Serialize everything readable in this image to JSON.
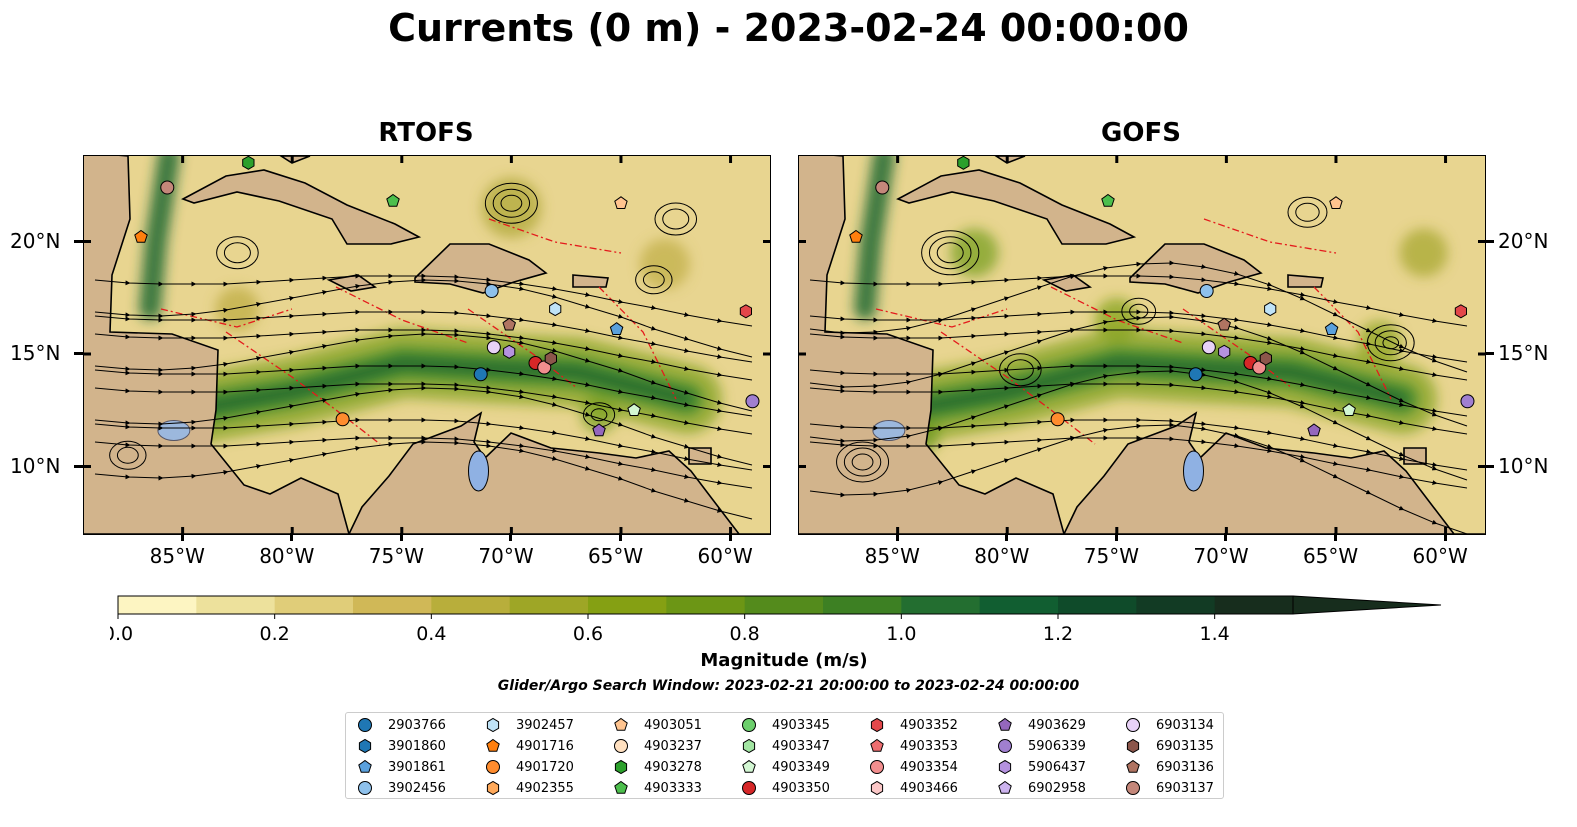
{
  "title": "Currents (0 m) - 2023-02-24 00:00:00",
  "panels": [
    {
      "id": "rtofs",
      "title": "RTOFS"
    },
    {
      "id": "gofs",
      "title": "GOFS"
    }
  ],
  "lon_ticks": [
    "85°W",
    "80°W",
    "75°W",
    "70°W",
    "65°W",
    "60°W"
  ],
  "lon_values": [
    -85,
    -80,
    -75,
    -70,
    -65,
    -60
  ],
  "lat_ticks": [
    "20°N",
    "15°N",
    "10°N"
  ],
  "lat_values": [
    20,
    15,
    10
  ],
  "extent": {
    "lon_min": -89.5,
    "lon_max": -58.2,
    "lat_min": 7.0,
    "lat_max": 23.8
  },
  "colorbar": {
    "label": "Magnitude (m/s)",
    "ticks": [
      "0.0",
      "0.2",
      "0.4",
      "0.6",
      "0.8",
      "1.0",
      "1.2",
      "1.4"
    ],
    "tick_values": [
      0.0,
      0.2,
      0.4,
      0.6,
      0.8,
      1.0,
      1.2,
      1.4
    ],
    "vmin": 0.0,
    "vmax": 1.5,
    "step": 0.1,
    "extend": "max",
    "colors": [
      "#fdf5c2",
      "#ede19c",
      "#e0cd79",
      "#d0b857",
      "#b8ae3b",
      "#9ea626",
      "#85a013",
      "#6c9615",
      "#548b1c",
      "#3d8023",
      "#236e30",
      "#115e31",
      "#0f4b2a",
      "#123b24",
      "#172d1d"
    ]
  },
  "search_window": "Glider/Argo Search Window: 2023-02-21 20:00:00 to 2023-02-24 00:00:00",
  "floats": [
    {
      "id": "2903766",
      "marker": "circle",
      "color": "#1f77b4",
      "lon": -71.4,
      "lat": 14.1
    },
    {
      "id": "3901860",
      "marker": "hexagon",
      "color": "#1f77b4"
    },
    {
      "id": "3901861",
      "marker": "pentagon",
      "color": "#5aa0dc",
      "lon": -65.2,
      "lat": 16.1
    },
    {
      "id": "3902456",
      "marker": "circle",
      "color": "#8ec1ec",
      "lon": -70.9,
      "lat": 17.8
    },
    {
      "id": "3902457",
      "marker": "hexagon",
      "color": "#bfe3f7",
      "lon": -68.0,
      "lat": 17.0
    },
    {
      "id": "4901716",
      "marker": "pentagon",
      "color": "#ff7f0e",
      "lon": -86.9,
      "lat": 20.2
    },
    {
      "id": "4901720",
      "marker": "circle",
      "color": "#ff8c2e",
      "lon": -77.7,
      "lat": 12.1
    },
    {
      "id": "4902355",
      "marker": "hexagon",
      "color": "#ffa95a"
    },
    {
      "id": "4903051",
      "marker": "pentagon",
      "color": "#ffc48f",
      "lon": -65.0,
      "lat": 21.7
    },
    {
      "id": "4903237",
      "marker": "circle",
      "color": "#ffe0c0"
    },
    {
      "id": "4903278",
      "marker": "hexagon",
      "color": "#2ca02c",
      "lon": -82.0,
      "lat": 23.5
    },
    {
      "id": "4903333",
      "marker": "pentagon",
      "color": "#4dbf4d",
      "lon": -75.4,
      "lat": 21.8
    },
    {
      "id": "4903345",
      "marker": "circle",
      "color": "#6ccf6c"
    },
    {
      "id": "4903347",
      "marker": "hexagon",
      "color": "#a2e5a2"
    },
    {
      "id": "4903349",
      "marker": "pentagon",
      "color": "#d3f7d3",
      "lon": -64.4,
      "lat": 12.5
    },
    {
      "id": "4903350",
      "marker": "circle",
      "color": "#d62728",
      "lon": -68.9,
      "lat": 14.6
    },
    {
      "id": "4903352",
      "marker": "hexagon",
      "color": "#e2474a",
      "lon": -59.3,
      "lat": 16.9
    },
    {
      "id": "4903353",
      "marker": "pentagon",
      "color": "#ee6e70"
    },
    {
      "id": "4903354",
      "marker": "circle",
      "color": "#f28e8e",
      "lon": -68.5,
      "lat": 14.4
    },
    {
      "id": "4903466",
      "marker": "hexagon",
      "color": "#fbc7c7"
    },
    {
      "id": "4903629",
      "marker": "pentagon",
      "color": "#9467bd",
      "lon": -66.0,
      "lat": 11.6
    },
    {
      "id": "5906339",
      "marker": "circle",
      "color": "#a07fd0",
      "lon": -59.0,
      "lat": 12.9
    },
    {
      "id": "5906437",
      "marker": "hexagon",
      "color": "#b592e0",
      "lon": -70.1,
      "lat": 15.1
    },
    {
      "id": "6902958",
      "marker": "pentagon",
      "color": "#ccb3ee"
    },
    {
      "id": "6903134",
      "marker": "circle",
      "color": "#e8d2f7",
      "lon": -70.8,
      "lat": 15.3
    },
    {
      "id": "6903135",
      "marker": "hexagon",
      "color": "#8c564b",
      "lon": -68.2,
      "lat": 14.8
    },
    {
      "id": "6903136",
      "marker": "pentagon",
      "color": "#b07462",
      "lon": -70.1,
      "lat": 16.3
    },
    {
      "id": "6903137",
      "marker": "circle",
      "color": "#c4877a",
      "lon": -85.7,
      "lat": 22.4
    }
  ]
}
